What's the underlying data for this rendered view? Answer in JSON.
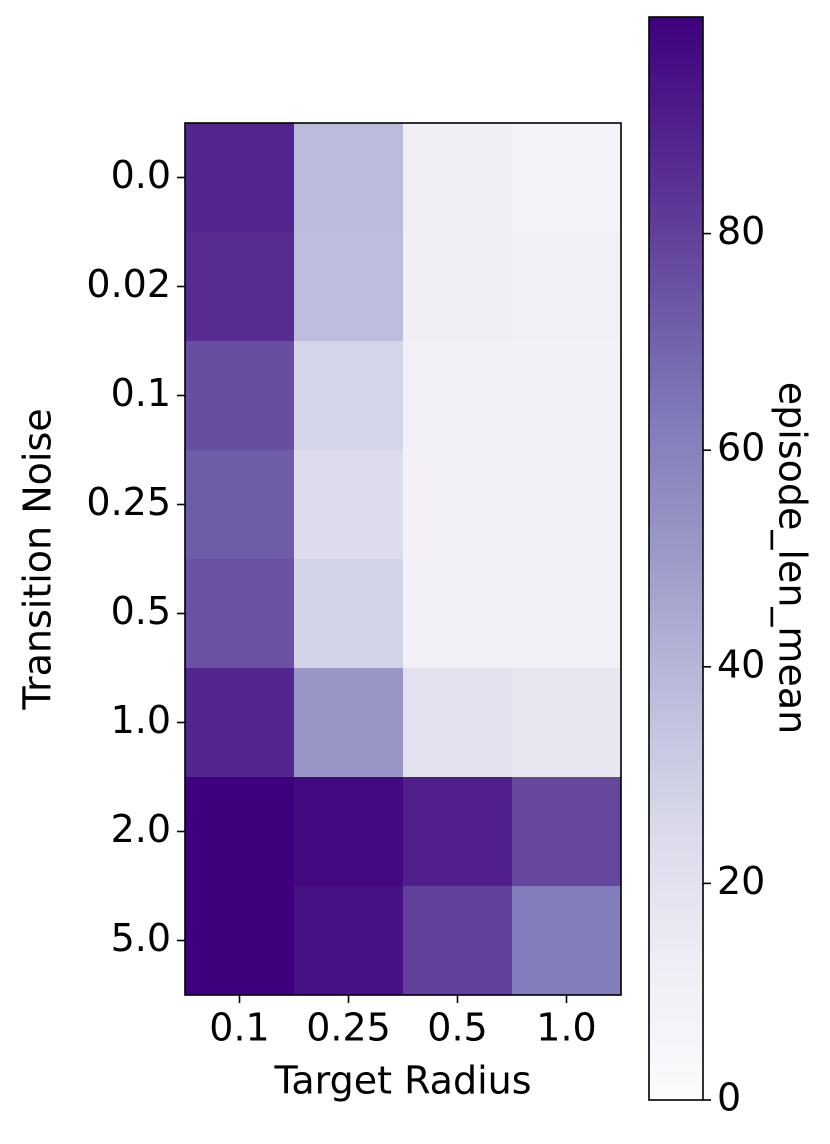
{
  "chart_data": {
    "type": "heatmap",
    "x_label": "Target Radius",
    "y_label": "Transition Noise",
    "colorbar_label": "episode_len_mean",
    "x_categories": [
      "0.1",
      "0.25",
      "0.5",
      "1.0"
    ],
    "y_categories": [
      "0.0",
      "0.02",
      "0.1",
      "0.25",
      "0.5",
      "1.0",
      "2.0",
      "5.0"
    ],
    "values": [
      [
        88,
        38,
        12,
        8
      ],
      [
        86,
        37,
        11,
        10
      ],
      [
        76,
        27,
        10,
        9
      ],
      [
        72,
        24,
        9,
        9
      ],
      [
        75,
        28,
        10,
        9
      ],
      [
        88,
        52,
        20,
        17
      ],
      [
        100,
        97,
        90,
        78
      ],
      [
        100,
        95,
        80,
        62
      ]
    ],
    "colormap": [
      "#fcfbfd",
      "#efedf5",
      "#dadaeb",
      "#bcbddc",
      "#9e9ac8",
      "#807dba",
      "#6a51a3",
      "#54278f",
      "#3f007d"
    ],
    "clim": [
      0,
      100
    ],
    "cticks": [
      0,
      20,
      40,
      60,
      80
    ]
  }
}
